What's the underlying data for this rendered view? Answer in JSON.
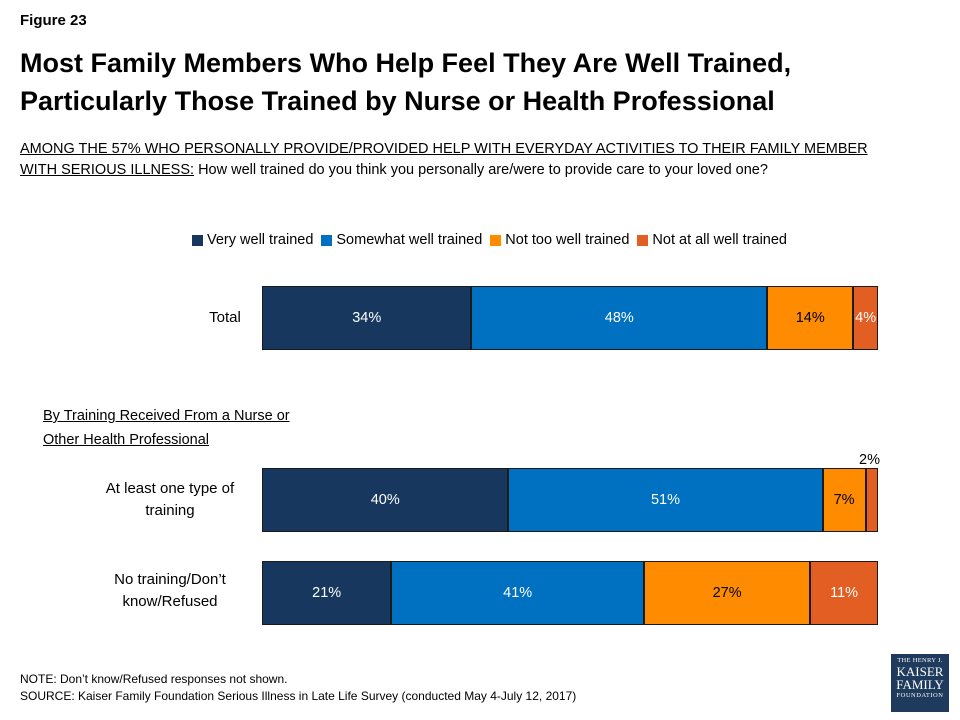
{
  "figure_label": "Figure 23",
  "title_line1": "Most Family Members Who Help Feel They Are Well Trained,",
  "title_line2": "Particularly Those Trained by Nurse or Health Professional",
  "subtitle": {
    "underlined_line1": "AMONG THE 57% WHO PERSONALLY PROVIDE/PROVIDED HELP WITH EVERYDAY ACTIVITIES TO THEIR FAMILY MEMBER",
    "underlined_line2": "WITH SERIOUS ILLNESS:",
    "question": " How well trained do you think you personally are/were to provide care to your loved one?"
  },
  "colors": {
    "very": "#17375e",
    "somewhat": "#0070c0",
    "not_too": "#ff8c00",
    "not_at_all": "#e35e23"
  },
  "chart_data": {
    "type": "bar",
    "orientation": "horizontal",
    "stacked": true,
    "legend_position": "top",
    "section_label_line1": "By Training Received From a Nurse or",
    "section_label_line2": "Other Health Professional",
    "categories": [
      "Total",
      "At least one type of training",
      "No training/Don’t know/Refused"
    ],
    "series": [
      {
        "name": "Very well trained",
        "color": "#17375e",
        "values": [
          34,
          40,
          21
        ]
      },
      {
        "name": "Somewhat well trained",
        "color": "#0070c0",
        "values": [
          48,
          51,
          41
        ]
      },
      {
        "name": "Not too well trained",
        "color": "#ff8c00",
        "values": [
          14,
          7,
          27
        ]
      },
      {
        "name": "Not at all well trained",
        "color": "#e35e23",
        "values": [
          4,
          2,
          11
        ]
      }
    ],
    "value_labels": [
      [
        "34%",
        "48%",
        "14%",
        "4%"
      ],
      [
        "40%",
        "51%",
        "7%",
        "2%"
      ],
      [
        "21%",
        "41%",
        "27%",
        "11%"
      ]
    ]
  },
  "footer": {
    "note": "NOTE: Don’t know/Refused responses not shown.",
    "source": "SOURCE: Kaiser Family Foundation Serious Illness in Late Life Survey (conducted May 4-July 12, 2017)"
  },
  "logo": {
    "line1": "THE HENRY J.",
    "line2": "KAISER",
    "line3": "FAMILY",
    "line4": "FOUNDATION"
  }
}
